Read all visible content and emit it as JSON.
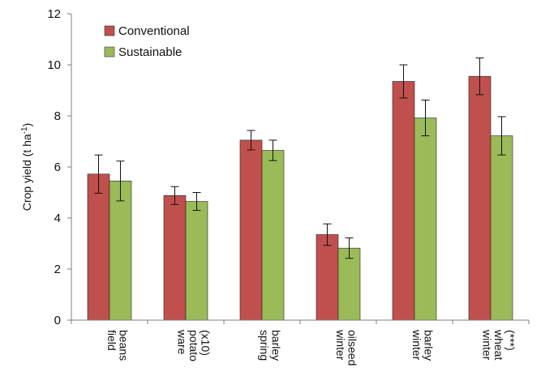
{
  "chart_data": {
    "type": "bar",
    "categories": [
      [
        "field",
        "beans"
      ],
      [
        "ware",
        "potato",
        "(x10)"
      ],
      [
        "spring",
        "barley"
      ],
      [
        "winter",
        "oilseed"
      ],
      [
        "winter",
        "barley"
      ],
      [
        "winter",
        "wheat",
        "(***)"
      ]
    ],
    "series": [
      {
        "name": "Conventional",
        "color": "#c0504d",
        "values": [
          5.72,
          4.88,
          7.05,
          3.35,
          9.35,
          9.55
        ],
        "error": [
          0.75,
          0.35,
          0.38,
          0.42,
          0.65,
          0.72
        ]
      },
      {
        "name": "Sustainable",
        "color": "#9bbb59",
        "values": [
          5.45,
          4.65,
          6.65,
          2.82,
          7.92,
          7.22
        ],
        "error": [
          0.78,
          0.35,
          0.4,
          0.4,
          0.7,
          0.75
        ]
      }
    ],
    "ylabel_parts": [
      "Crop yield (t ha",
      "-1",
      ")"
    ],
    "ylim": [
      0,
      12
    ],
    "yticks": [
      "0",
      "2",
      "4",
      "6",
      "8",
      "10",
      "12"
    ],
    "grid": false,
    "legend_position": "top-left"
  }
}
